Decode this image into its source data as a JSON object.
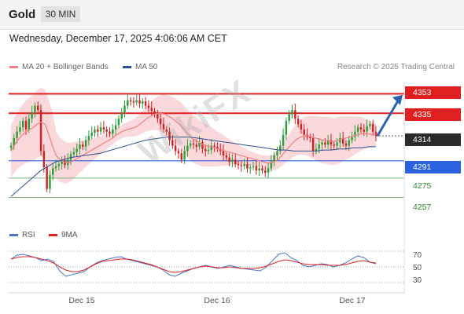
{
  "header": {
    "symbol": "Gold",
    "timeframe": "30 MIN"
  },
  "timestamp": "Wednesday, December 17, 2025 4:06:06 AM CET",
  "legend": {
    "ma20": {
      "label": "MA 20 + Bollinger Bands",
      "color": "#f08080"
    },
    "ma50": {
      "label": "MA 50",
      "color": "#2a4f8f"
    }
  },
  "credit": "Research © 2025 Trading Central",
  "watermark": "WikiFX",
  "levels": [
    {
      "value": "4353",
      "style": "red-tag"
    },
    {
      "value": "4335",
      "style": "red-tag"
    },
    {
      "value": "4314",
      "style": "current-price"
    },
    {
      "value": "4291",
      "style": "blue-tag"
    },
    {
      "value": "4275",
      "style": "green-label"
    },
    {
      "value": "4257",
      "style": "green-label"
    }
  ],
  "rsi": {
    "legend": {
      "rsi_label": "RSI",
      "rsi_color": "#4a72c8",
      "ma_label": "9MA",
      "ma_color": "#e02020"
    },
    "ticks": [
      "70",
      "50",
      "30"
    ]
  },
  "x_ticks": [
    "Dec 15",
    "Dec 16",
    "Dec 17"
  ],
  "chart_data": {
    "type": "line",
    "y_range": [
      4240,
      4365
    ],
    "price_closes": [
      4305,
      4312,
      4318,
      4322,
      4328,
      4320,
      4330,
      4336,
      4342,
      4338,
      4300,
      4285,
      4265,
      4278,
      4284,
      4286,
      4288,
      4291,
      4287,
      4292,
      4297,
      4299,
      4302,
      4306,
      4304,
      4310,
      4314,
      4317,
      4320,
      4318,
      4322,
      4320,
      4318,
      4316,
      4320,
      4324,
      4330,
      4336,
      4342,
      4347,
      4346,
      4345,
      4347,
      4344,
      4346,
      4342,
      4340,
      4337,
      4334,
      4330,
      4325,
      4320,
      4318,
      4310,
      4305,
      4300,
      4298,
      4292,
      4300,
      4305,
      4307,
      4306,
      4304,
      4308,
      4302,
      4300,
      4301,
      4305,
      4304,
      4302,
      4300,
      4296,
      4294,
      4290,
      4292,
      4288,
      4287,
      4286,
      4288,
      4284,
      4285,
      4286,
      4282,
      4284,
      4282,
      4280,
      4284,
      4290,
      4296,
      4300,
      4305,
      4315,
      4328,
      4334,
      4338,
      4330,
      4325,
      4320,
      4315,
      4313,
      4312,
      4300,
      4302,
      4306,
      4308,
      4306,
      4310,
      4306,
      4305,
      4308,
      4312,
      4307,
      4305,
      4310,
      4313,
      4318,
      4322,
      4320,
      4318,
      4323,
      4325,
      4318,
      4314
    ],
    "ma20": [
      4300,
      4306,
      4311,
      4315,
      4318,
      4320,
      4322,
      4325,
      4327,
      4325,
      4316,
      4305,
      4296,
      4292,
      4290,
      4289,
      4290,
      4292,
      4294,
      4296,
      4298,
      4300,
      4302,
      4304,
      4306,
      4308,
      4310,
      4312,
      4315,
      4317,
      4319,
      4320,
      4321,
      4322,
      4324,
      4327,
      4330,
      4332,
      4334,
      4335,
      4335,
      4334,
      4332,
      4330,
      4327,
      4324,
      4320,
      4316,
      4312,
      4310,
      4308,
      4306,
      4305,
      4304,
      4303,
      4302,
      4301,
      4300,
      4299,
      4298,
      4297,
      4296,
      4295,
      4294,
      4293,
      4292,
      4291,
      4290,
      4289,
      4289,
      4290,
      4292,
      4296,
      4300,
      4304,
      4308,
      4311,
      4313,
      4314,
      4314,
      4313,
      4312,
      4311,
      4310,
      4310,
      4309,
      4309,
      4310,
      4311,
      4312,
      4313,
      4314,
      4315,
      4316,
      4316,
      4316,
      4315,
      4315
    ],
    "ma50": [
      4258,
      4264,
      4270,
      4276,
      4282,
      4286,
      4290,
      4292,
      4294,
      4295,
      4296,
      4297,
      4298,
      4300,
      4302,
      4304,
      4306,
      4308,
      4310,
      4311,
      4312,
      4313,
      4313,
      4313,
      4313,
      4312,
      4311,
      4310,
      4309,
      4308,
      4307,
      4306,
      4305,
      4304,
      4303,
      4302,
      4301,
      4301,
      4300,
      4300,
      4300,
      4300,
      4301,
      4301,
      4302,
      4302,
      4303,
      4303,
      4304,
      4304
    ],
    "rsi": [
      60,
      65,
      66,
      64,
      62,
      58,
      60,
      57,
      45,
      38,
      40,
      42,
      44,
      50,
      55,
      58,
      60,
      62,
      63,
      60,
      58,
      56,
      54,
      52,
      50,
      46,
      40,
      38,
      42,
      45,
      48,
      50,
      52,
      50,
      48,
      50,
      52,
      50,
      48,
      47,
      46,
      45,
      50,
      58,
      66,
      68,
      62,
      58,
      52,
      50,
      52,
      54,
      53,
      50,
      52,
      55,
      60,
      64,
      62,
      56,
      54
    ],
    "rsi_ma9": [
      60,
      62,
      63,
      63,
      62,
      60,
      58,
      55,
      50,
      46,
      44,
      44,
      46,
      50,
      54,
      57,
      58,
      59,
      60,
      60,
      59,
      57,
      55,
      53,
      50,
      47,
      44,
      43,
      44,
      46,
      48,
      50,
      51,
      50,
      49,
      49,
      50,
      49,
      48,
      48,
      48,
      49,
      51,
      54,
      57,
      59,
      58,
      56,
      54,
      53,
      53,
      53,
      52,
      52,
      52,
      53,
      55,
      57,
      58,
      56,
      55
    ],
    "rsi_range": [
      20,
      80
    ]
  }
}
